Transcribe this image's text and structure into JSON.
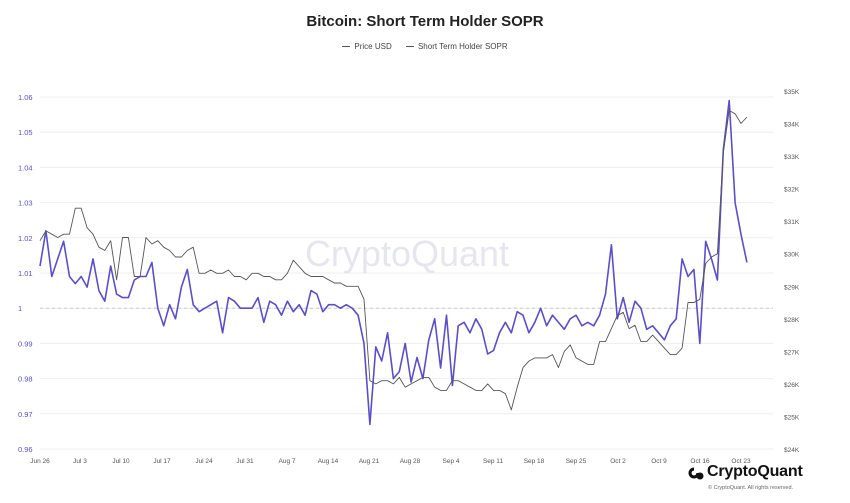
{
  "chart_data": {
    "type": "line",
    "title": "Bitcoin: Short Term Holder SOPR",
    "legend": [
      "Price USD",
      "Short Term Holder SOPR"
    ],
    "watermark": "CryptoQuant",
    "x_tick_labels": [
      "Jun 26",
      "Jul 3",
      "Jul 10",
      "Jul 17",
      "Jul 24",
      "Jul 31",
      "Aug 7",
      "Aug 14",
      "Aug 21",
      "Aug 28",
      "Sep 4",
      "Sep 11",
      "Sep 18",
      "Sep 25",
      "Oct 2",
      "Oct 9",
      "Oct 16",
      "Oct 23"
    ],
    "left_axis": {
      "label": "",
      "ticks": [
        "1.06",
        "1.05",
        "1.04",
        "1.03",
        "1.02",
        "1.01",
        "1",
        "0.99",
        "0.98",
        "0.97",
        "0.96"
      ],
      "range": [
        0.96,
        1.06
      ]
    },
    "right_axis": {
      "label": "",
      "ticks": [
        "$35K",
        "$34K",
        "$33K",
        "$32K",
        "$31K",
        "$30K",
        "$29K",
        "$28K",
        "$27K",
        "$26K",
        "$25K",
        "$24K"
      ],
      "range": [
        24000,
        35000
      ]
    },
    "reference_line": 1,
    "x_start": "Jun 26",
    "colors": {
      "sopr": "#5b4fc7",
      "price": "#555555",
      "grid": "#eeeeee",
      "left_tick": "#5b4fc7"
    },
    "series": [
      {
        "name": "Short Term Holder SOPR",
        "axis": "left",
        "values": [
          1.012,
          1.022,
          1.009,
          1.014,
          1.019,
          1.009,
          1.007,
          1.009,
          1.006,
          1.014,
          1.005,
          1.002,
          1.012,
          1.004,
          1.003,
          1.003,
          1.008,
          1.009,
          1.009,
          1.013,
          1.0,
          0.995,
          1.001,
          0.997,
          1.006,
          1.011,
          1.001,
          0.999,
          1.0,
          1.001,
          1.002,
          0.993,
          1.003,
          1.002,
          1.0,
          1.0,
          1.0,
          1.003,
          0.996,
          1.002,
          1.001,
          0.998,
          1.002,
          0.999,
          1.001,
          0.998,
          1.005,
          1.004,
          0.999,
          1.001,
          1.001,
          1.0,
          1.001,
          1.0,
          0.998,
          0.99,
          0.967,
          0.989,
          0.985,
          0.993,
          0.98,
          0.982,
          0.99,
          0.979,
          0.986,
          0.98,
          0.991,
          0.997,
          0.983,
          0.998,
          0.978,
          0.995,
          0.996,
          0.993,
          0.997,
          0.994,
          0.987,
          0.988,
          0.993,
          0.996,
          0.993,
          0.999,
          0.998,
          0.993,
          0.996,
          1.0,
          0.995,
          0.998,
          0.996,
          0.994,
          0.997,
          0.998,
          0.995,
          0.996,
          0.995,
          0.998,
          1.004,
          1.018,
          0.997,
          1.003,
          0.996,
          1.002,
          1.0,
          0.994,
          0.995,
          0.993,
          0.991,
          0.995,
          0.997,
          1.014,
          1.009,
          1.011,
          0.99,
          1.019,
          1.014,
          1.008,
          1.045,
          1.059,
          1.03,
          1.021,
          1.013
        ]
      },
      {
        "name": "Price USD",
        "axis": "right",
        "values": [
          30400,
          30700,
          30600,
          30500,
          30600,
          30600,
          31400,
          31400,
          30800,
          30600,
          30200,
          30100,
          30400,
          29200,
          30500,
          30500,
          29300,
          29300,
          30500,
          30300,
          30400,
          30200,
          30100,
          29900,
          29900,
          30100,
          30200,
          29400,
          29400,
          29500,
          29400,
          29400,
          29500,
          29300,
          29300,
          29200,
          29400,
          29400,
          29300,
          29300,
          29200,
          29200,
          29400,
          29800,
          29600,
          29400,
          29300,
          29300,
          29300,
          29200,
          29100,
          29100,
          29000,
          29000,
          29000,
          28600,
          26100,
          26000,
          26100,
          26100,
          26000,
          26200,
          25900,
          26000,
          26100,
          26200,
          26200,
          25900,
          25800,
          25800,
          26100,
          26100,
          26000,
          25900,
          25800,
          25800,
          26000,
          25800,
          25800,
          25700,
          25200,
          25900,
          26500,
          26700,
          26800,
          26800,
          26800,
          26900,
          26500,
          27000,
          27200,
          26800,
          26700,
          26600,
          26600,
          27300,
          27300,
          27700,
          28100,
          28200,
          27700,
          27800,
          27300,
          27300,
          27500,
          27300,
          27100,
          26900,
          26900,
          27100,
          28500,
          28500,
          28600,
          29700,
          29900,
          30000,
          33100,
          34400,
          34300,
          34000,
          34200
        ]
      }
    ]
  }
}
